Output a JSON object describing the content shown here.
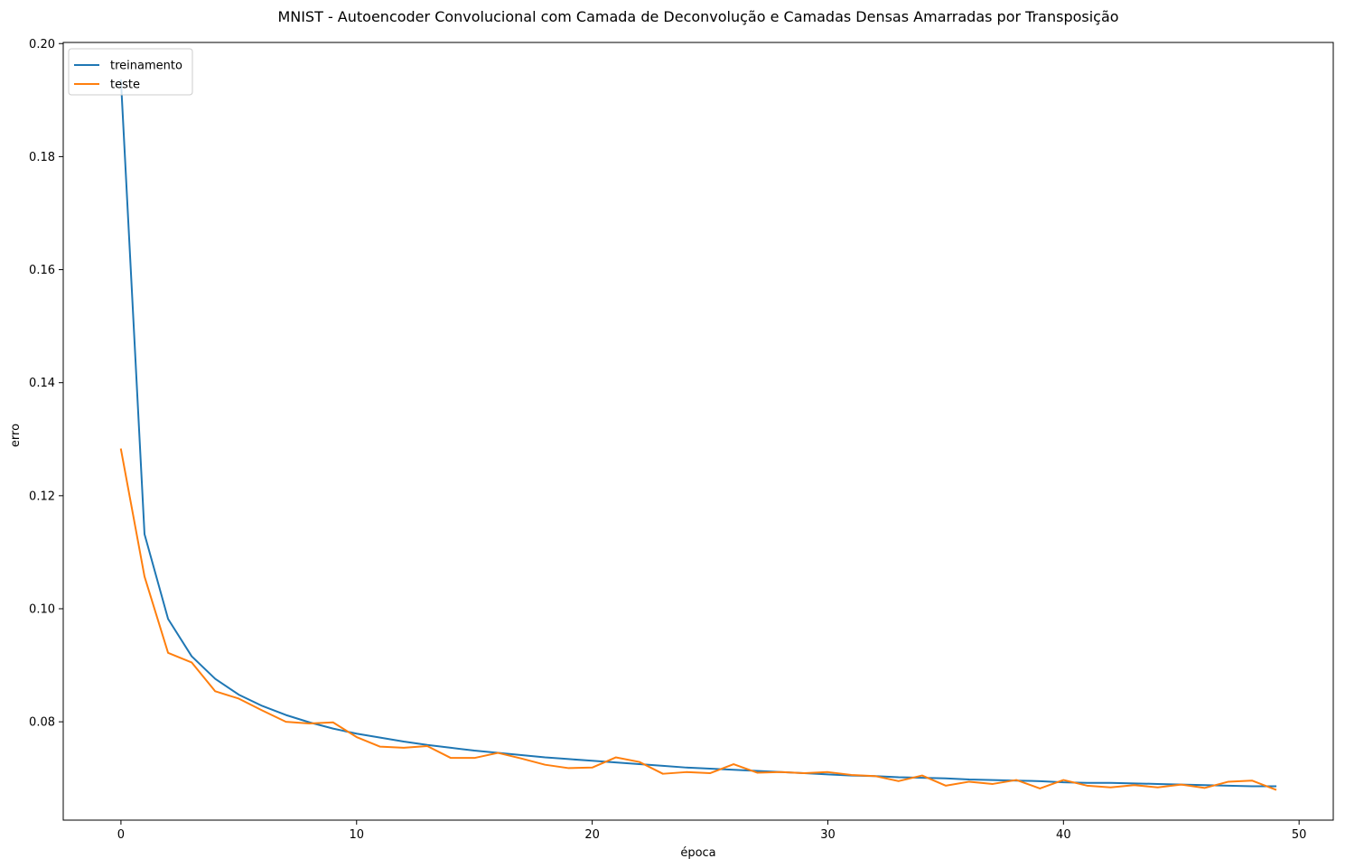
{
  "chart_data": {
    "type": "line",
    "title": "MNIST - Autoencoder Convolucional com Camada de Deconvolução e Camadas Densas Amarradas por Transposição",
    "xlabel": "época",
    "ylabel": "erro",
    "xlim": [
      -2.45,
      51.45
    ],
    "ylim": [
      0.0626,
      0.2002
    ],
    "xticks": [
      0,
      10,
      20,
      30,
      40,
      50
    ],
    "xtick_labels": [
      "0",
      "10",
      "20",
      "30",
      "40",
      "50"
    ],
    "yticks": [
      0.08,
      0.1,
      0.12,
      0.14,
      0.16,
      0.18,
      0.2
    ],
    "ytick_labels": [
      "0.08",
      "0.10",
      "0.12",
      "0.14",
      "0.16",
      "0.18",
      "0.20"
    ],
    "grid": false,
    "legend_position": "upper left",
    "x": [
      0,
      1,
      2,
      3,
      4,
      5,
      6,
      7,
      8,
      9,
      10,
      11,
      12,
      13,
      14,
      15,
      16,
      17,
      18,
      19,
      20,
      21,
      22,
      23,
      24,
      25,
      26,
      27,
      28,
      29,
      30,
      31,
      32,
      33,
      34,
      35,
      36,
      37,
      38,
      39,
      40,
      41,
      42,
      43,
      44,
      45,
      46,
      47,
      48,
      49
    ],
    "series": [
      {
        "name": "treinamento",
        "color": "#1f77b4",
        "values": [
          0.1935,
          0.1132,
          0.0982,
          0.0916,
          0.0876,
          0.0848,
          0.0828,
          0.0812,
          0.0799,
          0.0788,
          0.0779,
          0.0772,
          0.0765,
          0.0759,
          0.0754,
          0.0749,
          0.0745,
          0.0741,
          0.0737,
          0.0734,
          0.0731,
          0.0728,
          0.0725,
          0.0722,
          0.0719,
          0.0717,
          0.0715,
          0.0713,
          0.0711,
          0.0709,
          0.0707,
          0.0705,
          0.0704,
          0.0702,
          0.0701,
          0.07,
          0.0698,
          0.0697,
          0.0696,
          0.0695,
          0.0693,
          0.0692,
          0.0692,
          0.0691,
          0.069,
          0.0689,
          0.0688,
          0.0687,
          0.0686,
          0.0686
        ]
      },
      {
        "name": "teste",
        "color": "#ff7f0e",
        "values": [
          0.1282,
          0.1057,
          0.0922,
          0.0905,
          0.0854,
          0.0841,
          0.082,
          0.08,
          0.0797,
          0.0799,
          0.0773,
          0.0756,
          0.0754,
          0.0757,
          0.0736,
          0.0736,
          0.0745,
          0.0735,
          0.0724,
          0.0718,
          0.0719,
          0.0737,
          0.0729,
          0.0708,
          0.0711,
          0.0709,
          0.0725,
          0.071,
          0.0711,
          0.0709,
          0.0711,
          0.0706,
          0.0704,
          0.0695,
          0.0705,
          0.0687,
          0.0694,
          0.069,
          0.0697,
          0.0682,
          0.0697,
          0.0687,
          0.0684,
          0.0688,
          0.0684,
          0.0689,
          0.0683,
          0.0694,
          0.0696,
          0.068
        ]
      }
    ]
  }
}
